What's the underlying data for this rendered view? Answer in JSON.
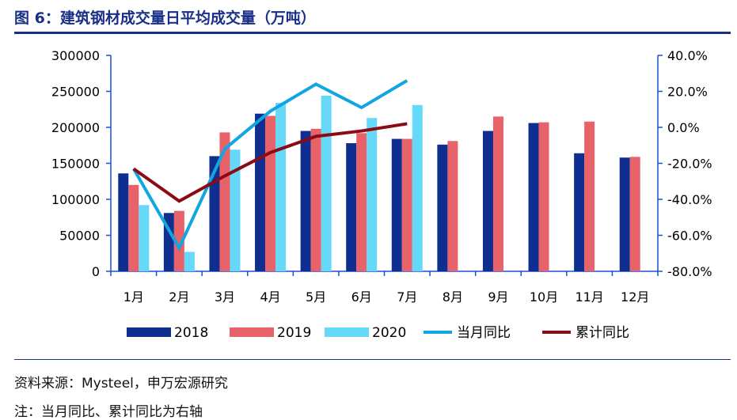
{
  "title": "图 6：建筑钢材成交量日平均成交量（万吨）",
  "source": "资料来源：Mysteel，申万宏源研究",
  "note": "注：当月同比、累计同比为右轴",
  "colors": {
    "s2018": "#0f2e8f",
    "s2019": "#e8626a",
    "s2020": "#66d8f8",
    "yoy": "#11a6e0",
    "cum": "#8b0a14",
    "axis": "#1b4fd8",
    "rule": "#1a2f87"
  },
  "chart_data": {
    "type": "bar",
    "title": "建筑钢材成交量日平均成交量（万吨）",
    "categories": [
      "1月",
      "2月",
      "3月",
      "4月",
      "5月",
      "6月",
      "7月",
      "8月",
      "9月",
      "10月",
      "11月",
      "12月"
    ],
    "left_axis": {
      "min": 0,
      "max": 300000,
      "step": 50000,
      "ticks": [
        "0",
        "50000",
        "100000",
        "150000",
        "200000",
        "250000",
        "300000"
      ]
    },
    "right_axis": {
      "min": -80,
      "max": 40,
      "step": 20,
      "ticks": [
        "-80.0%",
        "-60.0%",
        "-40.0%",
        "-20.0%",
        "0.0%",
        "20.0%",
        "40.0%"
      ]
    },
    "series": [
      {
        "name": "2018",
        "type": "bar",
        "axis": "left",
        "values": [
          136000,
          81000,
          160000,
          219000,
          195000,
          178000,
          184000,
          176000,
          195000,
          206000,
          164000,
          158000
        ]
      },
      {
        "name": "2019",
        "type": "bar",
        "axis": "left",
        "values": [
          120000,
          84000,
          193000,
          216000,
          198000,
          192000,
          184000,
          181000,
          215000,
          207000,
          208000,
          159000
        ]
      },
      {
        "name": "2020",
        "type": "bar",
        "axis": "left",
        "values": [
          92000,
          27000,
          169000,
          234000,
          244000,
          213000,
          231000,
          null,
          null,
          null,
          null,
          null
        ]
      },
      {
        "name": "当月同比",
        "type": "line",
        "axis": "right",
        "values": [
          -23,
          -67,
          -12,
          9,
          24,
          11,
          26,
          null,
          null,
          null,
          null,
          null
        ]
      },
      {
        "name": "累计同比",
        "type": "line",
        "axis": "right",
        "values": [
          -23,
          -41,
          -27,
          -14,
          -5,
          -2,
          2,
          null,
          null,
          null,
          null,
          null
        ]
      }
    ],
    "legend": [
      "2018",
      "2019",
      "2020",
      "当月同比",
      "累计同比"
    ]
  }
}
